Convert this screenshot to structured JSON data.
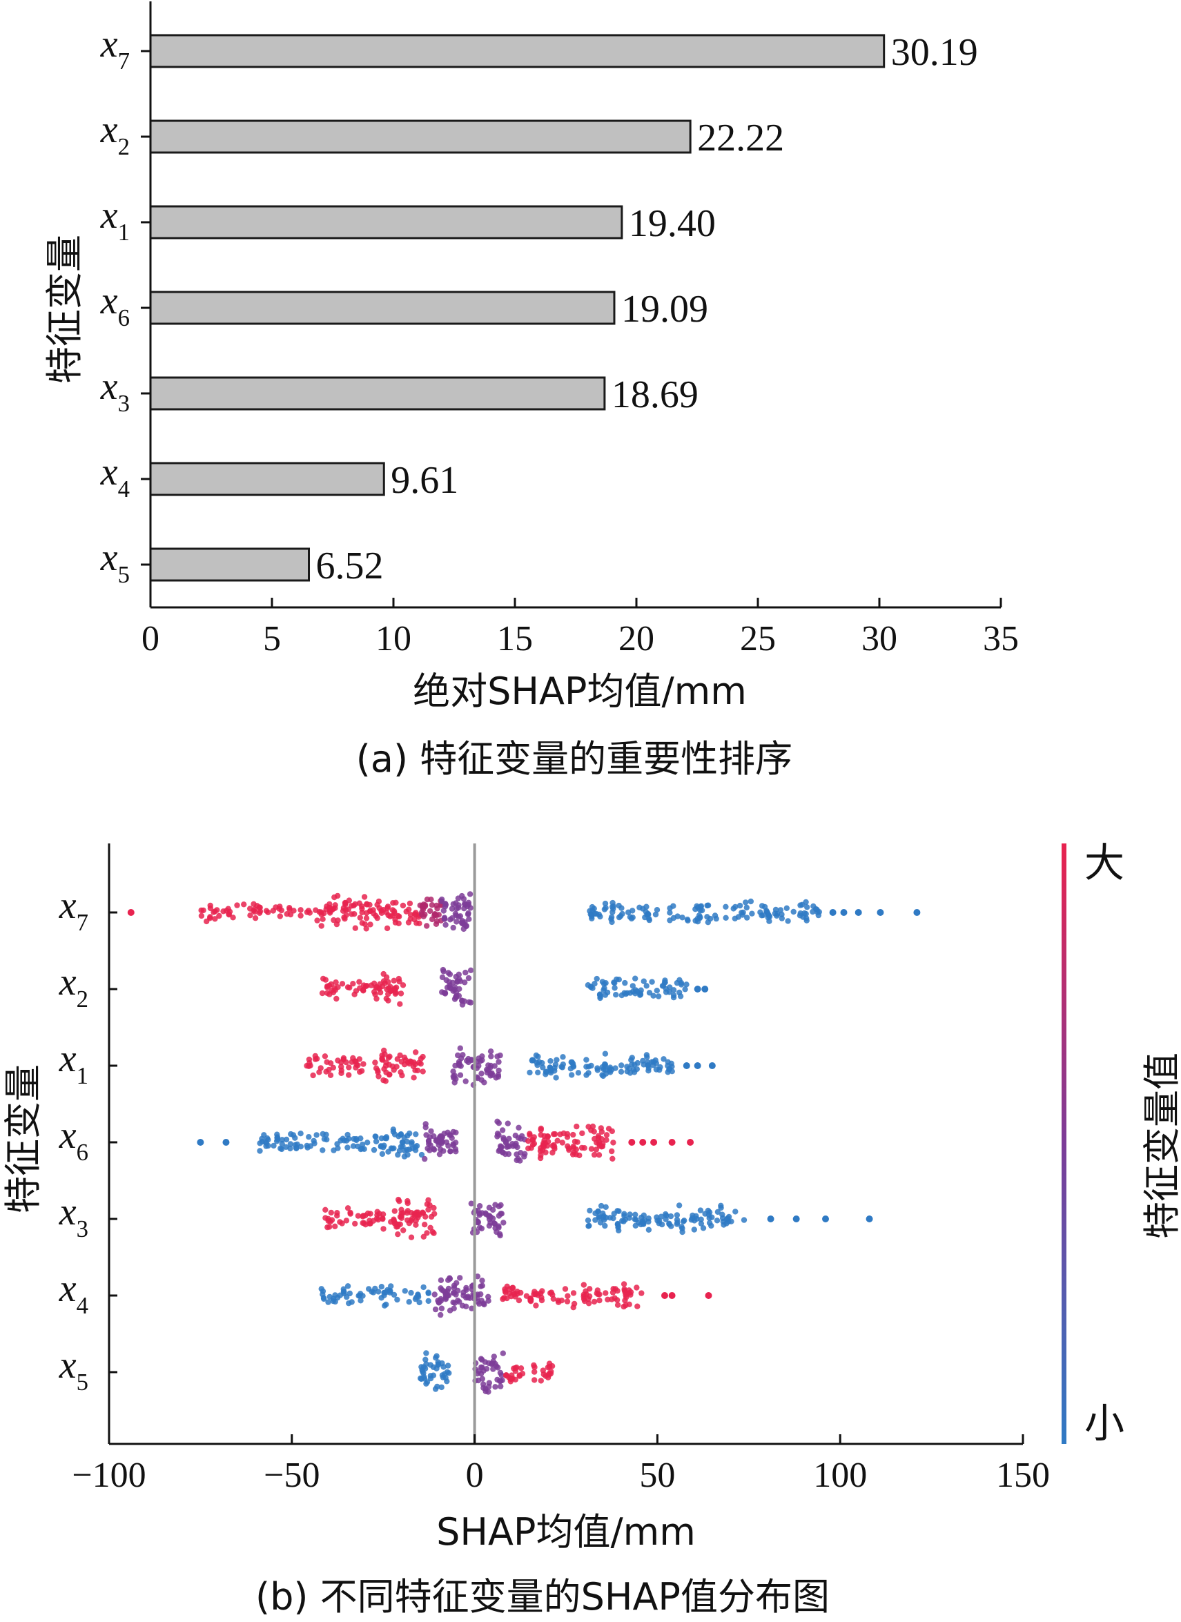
{
  "chart_data": [
    {
      "type": "bar",
      "orientation": "horizontal",
      "categories": [
        {
          "base": "x",
          "sub": "7"
        },
        {
          "base": "x",
          "sub": "2"
        },
        {
          "base": "x",
          "sub": "1"
        },
        {
          "base": "x",
          "sub": "6"
        },
        {
          "base": "x",
          "sub": "3"
        },
        {
          "base": "x",
          "sub": "4"
        },
        {
          "base": "x",
          "sub": "5"
        }
      ],
      "values": [
        30.19,
        22.22,
        19.4,
        19.09,
        18.69,
        9.61,
        6.52
      ],
      "value_labels": [
        "30.19",
        "22.22",
        "19.40",
        "19.09",
        "18.69",
        "9.61",
        "6.52"
      ],
      "xlabel": "绝对SHAP均值/mm",
      "ylabel": "特征变量",
      "caption": "(a) 特征变量的重要性排序",
      "xlim": [
        0,
        35
      ],
      "xticks": [
        0,
        5,
        10,
        15,
        20,
        25,
        30,
        35
      ],
      "xtick_labels": [
        "0",
        "5",
        "10",
        "15",
        "20",
        "25",
        "30",
        "35"
      ],
      "grid": false,
      "bar_color": "#c0c0c0",
      "bar_edge_color": "#1a1a1a"
    },
    {
      "type": "scatter",
      "subtype": "beeswarm",
      "categories": [
        {
          "base": "x",
          "sub": "7"
        },
        {
          "base": "x",
          "sub": "2"
        },
        {
          "base": "x",
          "sub": "1"
        },
        {
          "base": "x",
          "sub": "6"
        },
        {
          "base": "x",
          "sub": "3"
        },
        {
          "base": "x",
          "sub": "4"
        },
        {
          "base": "x",
          "sub": "5"
        }
      ],
      "xlabel": "SHAP均值/mm",
      "ylabel": "特征变量",
      "caption": "(b) 不同特征变量的SHAP值分布图",
      "xlim": [
        -100,
        150
      ],
      "xticks": [
        -100,
        -50,
        0,
        50,
        100,
        150
      ],
      "xtick_labels": [
        "−100",
        "−50",
        "0",
        "50",
        "100",
        "150"
      ],
      "zero_line": 0,
      "colorbar": {
        "label": "特征变量值",
        "high_label": "大",
        "low_label": "小",
        "high_color": "#e8234f",
        "mid_color": "#7c3c98",
        "low_color": "#2f7ac4"
      },
      "features": [
        {
          "segments": [
            {
              "from": -75,
              "to": -42,
              "density": 0.3,
              "color": "high"
            },
            {
              "from": -42,
              "to": -15,
              "density": 0.7,
              "color": "high"
            },
            {
              "from": -15,
              "to": -9,
              "density": 0.8,
              "color": "mid-high"
            },
            {
              "from": -9,
              "to": -1,
              "density": 1.0,
              "color": "mid"
            },
            {
              "from": 31,
              "to": 95,
              "density": 0.4,
              "color": "low"
            }
          ],
          "outliers": [
            {
              "x": -94,
              "color": "high"
            },
            {
              "x": 98,
              "color": "low"
            },
            {
              "x": 101,
              "color": "low"
            },
            {
              "x": 105,
              "color": "low"
            },
            {
              "x": 111,
              "color": "low"
            },
            {
              "x": 121,
              "color": "low"
            }
          ]
        },
        {
          "segments": [
            {
              "from": -42,
              "to": -27,
              "density": 0.35,
              "color": "high"
            },
            {
              "from": -27,
              "to": -19,
              "density": 0.65,
              "color": "high"
            },
            {
              "from": -9,
              "to": -1,
              "density": 0.9,
              "color": "mid"
            },
            {
              "from": 31,
              "to": 58,
              "density": 0.45,
              "color": "low"
            }
          ],
          "outliers": [
            {
              "x": 61,
              "color": "low"
            },
            {
              "x": 63,
              "color": "low"
            }
          ]
        },
        {
          "segments": [
            {
              "from": -46,
              "to": -27,
              "density": 0.35,
              "color": "high"
            },
            {
              "from": -27,
              "to": -14,
              "density": 0.65,
              "color": "high"
            },
            {
              "from": -6,
              "to": 7,
              "density": 0.8,
              "color": "mid"
            },
            {
              "from": 15,
              "to": 55,
              "density": 0.5,
              "color": "low"
            }
          ],
          "outliers": [
            {
              "x": 58,
              "color": "low"
            },
            {
              "x": 61,
              "color": "low"
            },
            {
              "x": 65,
              "color": "low"
            }
          ]
        },
        {
          "segments": [
            {
              "from": -59,
              "to": -26,
              "density": 0.4,
              "color": "low"
            },
            {
              "from": -26,
              "to": -14,
              "density": 0.6,
              "color": "low"
            },
            {
              "from": -14,
              "to": -5,
              "density": 0.9,
              "color": "mid"
            },
            {
              "from": 6,
              "to": 14,
              "density": 0.9,
              "color": "mid"
            },
            {
              "from": 14,
              "to": 38,
              "density": 0.7,
              "color": "high"
            }
          ],
          "outliers": [
            {
              "x": -75,
              "color": "low"
            },
            {
              "x": -68,
              "color": "low"
            },
            {
              "x": 43,
              "color": "high"
            },
            {
              "x": 46,
              "color": "high"
            },
            {
              "x": 49,
              "color": "high"
            },
            {
              "x": 54,
              "color": "high"
            },
            {
              "x": 59,
              "color": "high"
            }
          ]
        },
        {
          "segments": [
            {
              "from": -41,
              "to": -22,
              "density": 0.4,
              "color": "high"
            },
            {
              "from": -22,
              "to": -11,
              "density": 0.85,
              "color": "high"
            },
            {
              "from": -1,
              "to": 8,
              "density": 0.85,
              "color": "mid"
            },
            {
              "from": 31,
              "to": 74,
              "density": 0.5,
              "color": "low"
            }
          ],
          "outliers": [
            {
              "x": 81,
              "color": "low"
            },
            {
              "x": 88,
              "color": "low"
            },
            {
              "x": 96,
              "color": "low"
            },
            {
              "x": 108,
              "color": "low"
            }
          ]
        },
        {
          "segments": [
            {
              "from": -42,
              "to": -11,
              "density": 0.35,
              "color": "low"
            },
            {
              "from": -11,
              "to": 4,
              "density": 0.9,
              "color": "mid"
            },
            {
              "from": 7,
              "to": 46,
              "density": 0.45,
              "color": "high"
            }
          ],
          "outliers": [
            {
              "x": 52,
              "color": "high"
            },
            {
              "x": 54,
              "color": "high"
            },
            {
              "x": 64,
              "color": "high"
            }
          ]
        },
        {
          "segments": [
            {
              "from": -15,
              "to": -7,
              "density": 0.8,
              "color": "low"
            },
            {
              "from": 0,
              "to": 8,
              "density": 0.85,
              "color": "mid"
            },
            {
              "from": 8,
              "to": 22,
              "density": 0.4,
              "color": "high"
            }
          ],
          "outliers": []
        }
      ]
    }
  ]
}
